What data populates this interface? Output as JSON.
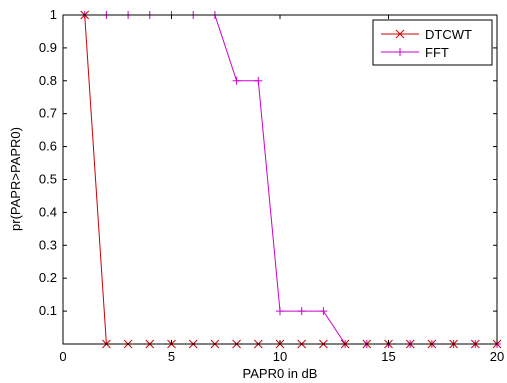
{
  "chart_data": {
    "type": "line",
    "title": "",
    "xlabel": "PAPR0 in dB",
    "ylabel": "pr(PAPR>PAPR0)",
    "xlim": [
      0,
      20
    ],
    "ylim": [
      0,
      1
    ],
    "xticks": [
      0,
      5,
      10,
      15,
      20
    ],
    "xtick_labels": [
      "0",
      "5",
      "10",
      "15",
      "20"
    ],
    "yticks": [
      0.1,
      0.2,
      0.3,
      0.4,
      0.5,
      0.6,
      0.7,
      0.8,
      0.9,
      1
    ],
    "ytick_labels": [
      "0.1",
      "0.2",
      "0.3",
      "0.4",
      "0.5",
      "0.6",
      "0.7",
      "0.8",
      "0.9",
      "1"
    ],
    "grid": false,
    "legend_position": "top-right",
    "x": [
      1,
      2,
      3,
      4,
      5,
      6,
      7,
      8,
      9,
      10,
      11,
      12,
      13,
      14,
      15,
      16,
      17,
      18,
      19,
      20
    ],
    "series": [
      {
        "name": "DTCWT",
        "color": "#cc0000",
        "marker": "x",
        "values": [
          1,
          0,
          0,
          0,
          0,
          0,
          0,
          0,
          0,
          0,
          0,
          0,
          0,
          0,
          0,
          0,
          0,
          0,
          0,
          0
        ]
      },
      {
        "name": "FFT",
        "color": "#cc00cc",
        "marker": "+",
        "values": [
          1,
          1,
          1,
          1,
          1,
          1,
          1,
          0.8,
          0.8,
          0.1,
          0.1,
          0.1,
          0,
          0,
          0,
          0,
          0,
          0,
          0,
          0
        ]
      }
    ]
  }
}
